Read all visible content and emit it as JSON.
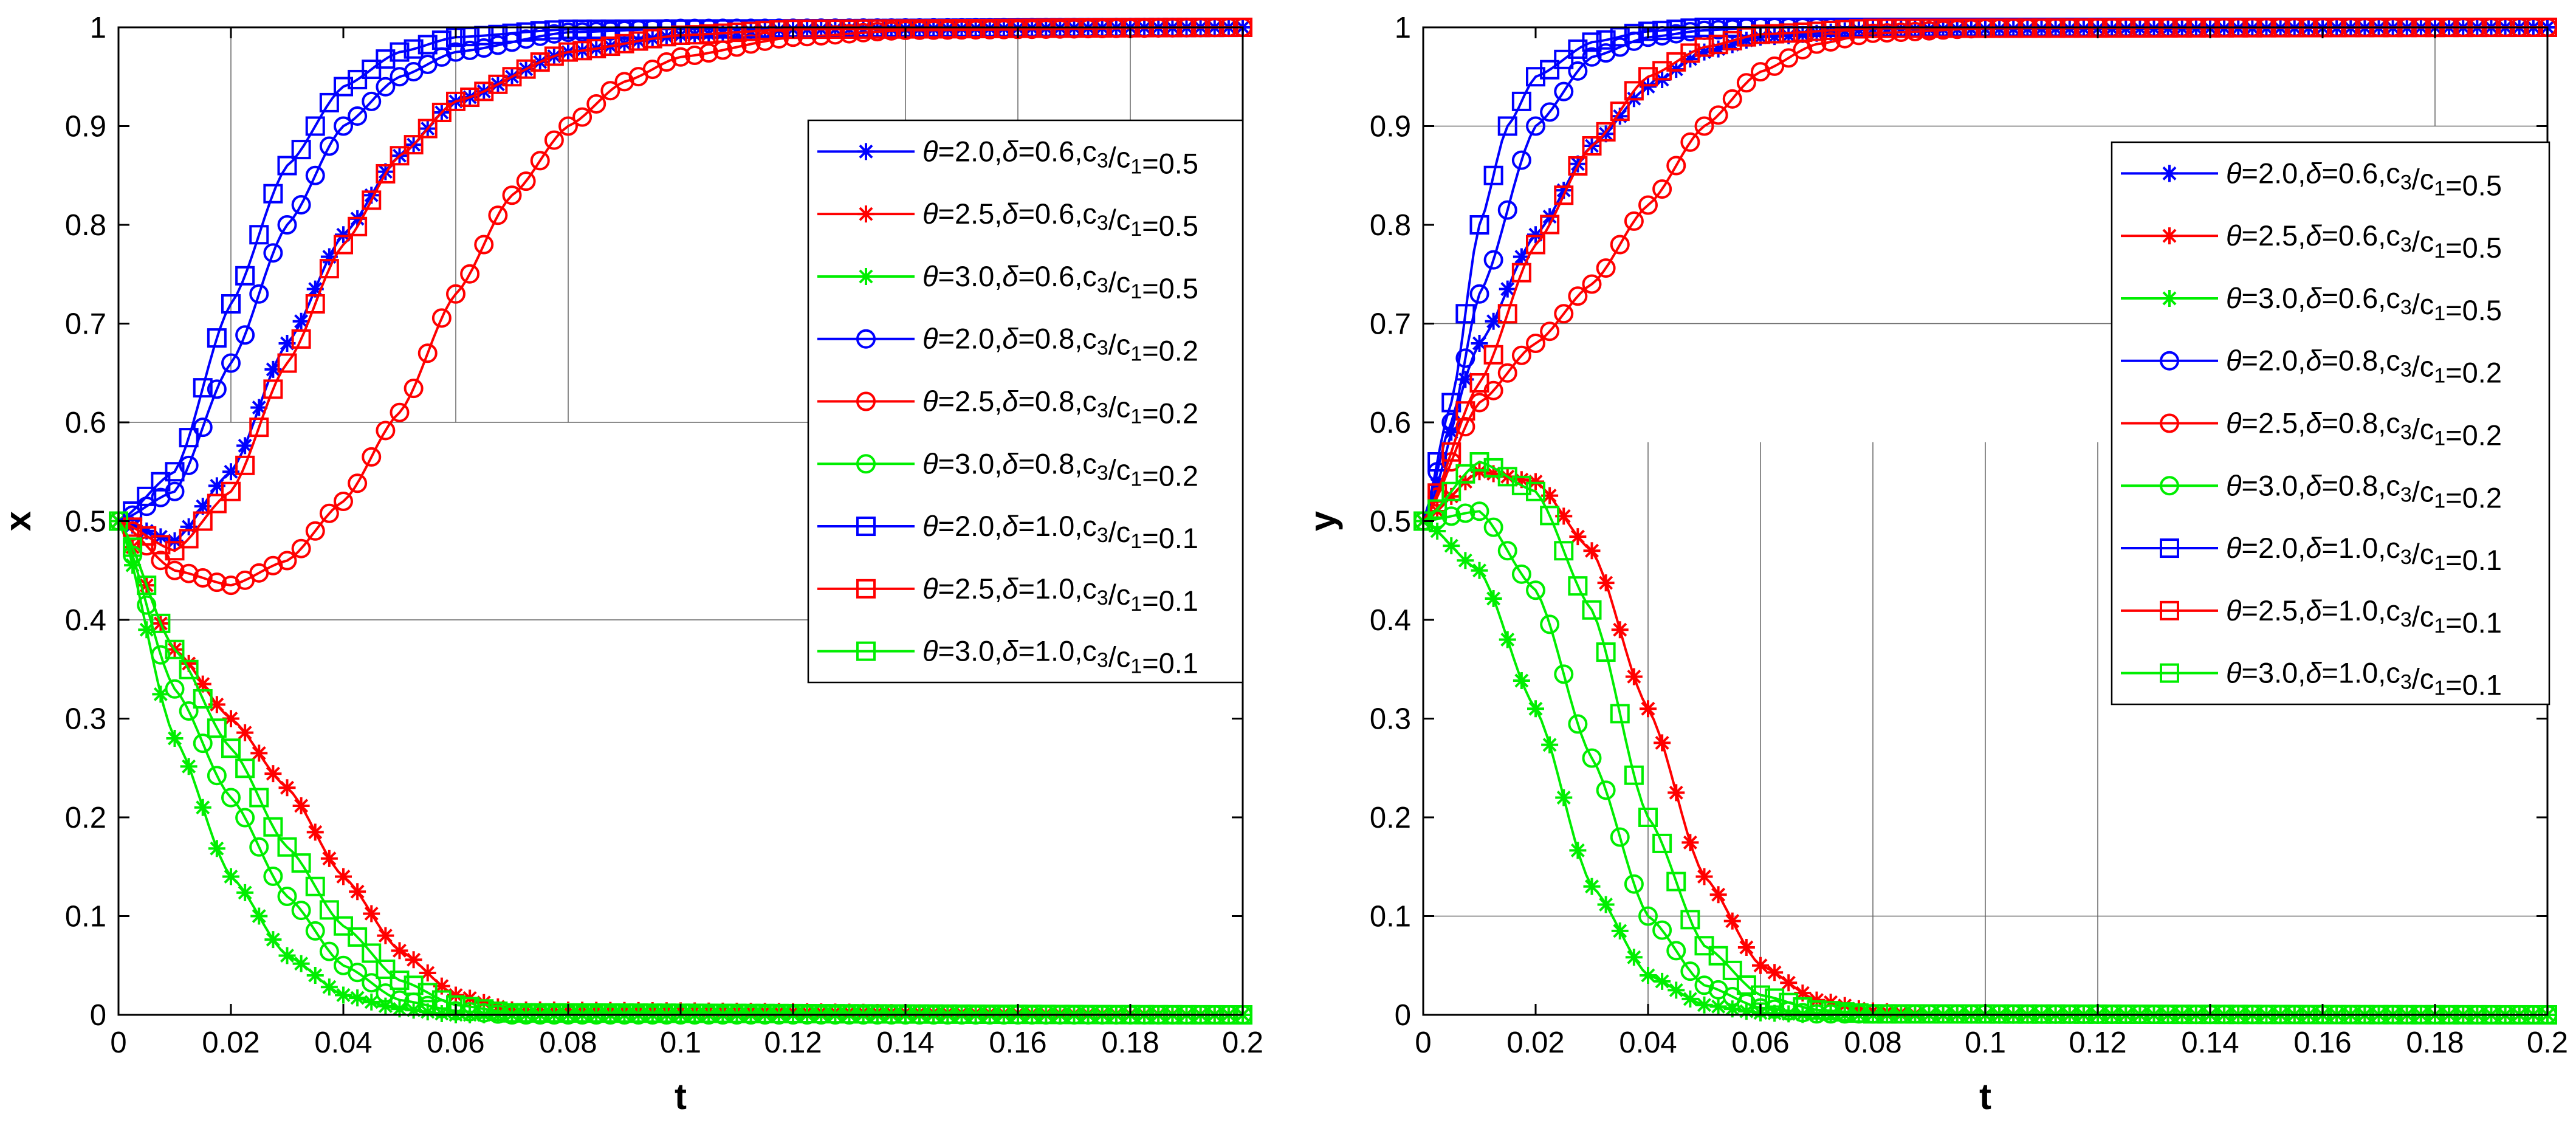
{
  "chart_data": [
    {
      "type": "line",
      "xlabel": "t",
      "ylabel": "x",
      "xlim": [
        0,
        0.2
      ],
      "ylim": [
        0,
        1
      ],
      "xticks": [
        0,
        0.02,
        0.04,
        0.06,
        0.08,
        0.1,
        0.12,
        0.14,
        0.16,
        0.18,
        0.2
      ],
      "xtick_labels": [
        "0",
        "0.02",
        "0.04",
        "0.06",
        "0.08",
        "0.1",
        "0.12",
        "0.14",
        "0.16",
        "0.18",
        "0.2"
      ],
      "yticks": [
        0,
        0.1,
        0.2,
        0.3,
        0.4,
        0.5,
        0.6,
        0.7,
        0.8,
        0.9,
        1
      ],
      "ytick_labels": [
        "0",
        "0.1",
        "0.2",
        "0.3",
        "0.4",
        "0.5",
        "0.6",
        "0.7",
        "0.8",
        "0.9",
        "1"
      ],
      "legend_position": "top-right",
      "series": [
        {
          "name": "θ=2.0,δ=0.6,c3/c1=0.5",
          "label": {
            "theta": "2.0",
            "delta": "0.6",
            "ratio": "0.5"
          },
          "color": "#0000ff",
          "marker": "asterisk",
          "x": [
            0,
            0.01,
            0.02,
            0.03,
            0.04,
            0.05,
            0.06,
            0.08,
            0.1,
            0.12,
            0.2
          ],
          "y": [
            0.5,
            0.48,
            0.55,
            0.68,
            0.79,
            0.87,
            0.925,
            0.975,
            0.992,
            0.998,
            1.0
          ]
        },
        {
          "name": "θ=2.5,δ=0.6,c3/c1=0.5",
          "label": {
            "theta": "2.5",
            "delta": "0.6",
            "ratio": "0.5"
          },
          "color": "#ff0000",
          "marker": "asterisk",
          "x": [
            0,
            0.01,
            0.02,
            0.03,
            0.04,
            0.05,
            0.06,
            0.07,
            0.2
          ],
          "y": [
            0.5,
            0.37,
            0.3,
            0.23,
            0.14,
            0.065,
            0.02,
            0.005,
            0.0
          ]
        },
        {
          "name": "θ=3.0,δ=0.6,c3/c1=0.5",
          "label": {
            "theta": "3.0",
            "delta": "0.6",
            "ratio": "0.5"
          },
          "color": "#00ee00",
          "marker": "asterisk",
          "x": [
            0,
            0.01,
            0.02,
            0.03,
            0.04,
            0.05,
            0.06,
            0.2
          ],
          "y": [
            0.5,
            0.28,
            0.14,
            0.06,
            0.02,
            0.006,
            0.0,
            0.0
          ]
        },
        {
          "name": "θ=2.0,δ=0.8,c3/c1=0.2",
          "label": {
            "theta": "2.0",
            "delta": "0.8",
            "ratio": "0.2"
          },
          "color": "#0000ff",
          "marker": "circle",
          "x": [
            0,
            0.01,
            0.02,
            0.03,
            0.04,
            0.05,
            0.06,
            0.08,
            0.1,
            0.2
          ],
          "y": [
            0.5,
            0.53,
            0.66,
            0.8,
            0.9,
            0.95,
            0.975,
            0.995,
            0.999,
            1.0
          ]
        },
        {
          "name": "θ=2.5,δ=0.8,c3/c1=0.2",
          "label": {
            "theta": "2.5",
            "delta": "0.8",
            "ratio": "0.2"
          },
          "color": "#ff0000",
          "marker": "circle",
          "x": [
            0,
            0.01,
            0.02,
            0.03,
            0.04,
            0.05,
            0.06,
            0.07,
            0.08,
            0.09,
            0.1,
            0.12,
            0.14,
            0.2
          ],
          "y": [
            0.5,
            0.45,
            0.435,
            0.46,
            0.52,
            0.61,
            0.73,
            0.83,
            0.9,
            0.945,
            0.97,
            0.99,
            0.997,
            1.0
          ]
        },
        {
          "name": "θ=3.0,δ=0.8,c3/c1=0.2",
          "label": {
            "theta": "3.0",
            "delta": "0.8",
            "ratio": "0.2"
          },
          "color": "#00ee00",
          "marker": "circle",
          "x": [
            0,
            0.01,
            0.02,
            0.03,
            0.04,
            0.05,
            0.06,
            0.07,
            0.2
          ],
          "y": [
            0.5,
            0.33,
            0.22,
            0.12,
            0.05,
            0.015,
            0.004,
            0.0,
            0.0
          ]
        },
        {
          "name": "θ=2.0,δ=1.0,c3/c1=0.1",
          "label": {
            "theta": "2.0",
            "delta": "1.0",
            "ratio": "0.1"
          },
          "color": "#0000ff",
          "marker": "square",
          "x": [
            0,
            0.01,
            0.02,
            0.03,
            0.04,
            0.05,
            0.06,
            0.08,
            0.2
          ],
          "y": [
            0.5,
            0.55,
            0.72,
            0.86,
            0.94,
            0.975,
            0.99,
            0.998,
            1.0
          ]
        },
        {
          "name": "θ=2.5,δ=1.0,c3/c1=0.1",
          "label": {
            "theta": "2.5",
            "delta": "1.0",
            "ratio": "0.1"
          },
          "color": "#ff0000",
          "marker": "square",
          "x": [
            0,
            0.01,
            0.02,
            0.03,
            0.04,
            0.05,
            0.06,
            0.08,
            0.1,
            0.12,
            0.2
          ],
          "y": [
            0.5,
            0.47,
            0.53,
            0.66,
            0.78,
            0.87,
            0.925,
            0.975,
            0.992,
            0.998,
            1.0
          ]
        },
        {
          "name": "θ=3.0,δ=1.0,c3/c1=0.1",
          "label": {
            "theta": "3.0",
            "delta": "1.0",
            "ratio": "0.1"
          },
          "color": "#00ee00",
          "marker": "square",
          "x": [
            0,
            0.01,
            0.02,
            0.03,
            0.04,
            0.05,
            0.06,
            0.07,
            0.2
          ],
          "y": [
            0.5,
            0.37,
            0.27,
            0.17,
            0.09,
            0.035,
            0.01,
            0.002,
            0.0
          ]
        }
      ]
    },
    {
      "type": "line",
      "xlabel": "t",
      "ylabel": "y",
      "xlim": [
        0,
        0.2
      ],
      "ylim": [
        0,
        1
      ],
      "xticks": [
        0,
        0.02,
        0.04,
        0.06,
        0.08,
        0.1,
        0.12,
        0.14,
        0.16,
        0.18,
        0.2
      ],
      "xtick_labels": [
        "0",
        "0.02",
        "0.04",
        "0.06",
        "0.08",
        "0.1",
        "0.12",
        "0.14",
        "0.16",
        "0.18",
        "0.2"
      ],
      "yticks": [
        0,
        0.1,
        0.2,
        0.3,
        0.4,
        0.5,
        0.6,
        0.7,
        0.8,
        0.9,
        1
      ],
      "ytick_labels": [
        "0",
        "0.1",
        "0.2",
        "0.3",
        "0.4",
        "0.5",
        "0.6",
        "0.7",
        "0.8",
        "0.9",
        "1"
      ],
      "legend_position": "top-right",
      "series": [
        {
          "name": "θ=2.0,δ=0.6,c3/c1=0.5",
          "label": {
            "theta": "2.0",
            "delta": "0.6",
            "ratio": "0.5"
          },
          "color": "#0000ff",
          "marker": "asterisk",
          "x": [
            0,
            0.01,
            0.02,
            0.03,
            0.04,
            0.05,
            0.06,
            0.08,
            0.2
          ],
          "y": [
            0.5,
            0.68,
            0.79,
            0.88,
            0.94,
            0.975,
            0.99,
            0.998,
            1.0
          ]
        },
        {
          "name": "θ=2.5,δ=0.6,c3/c1=0.5",
          "label": {
            "theta": "2.5",
            "delta": "0.6",
            "ratio": "0.5"
          },
          "color": "#ff0000",
          "marker": "asterisk",
          "x": [
            0,
            0.01,
            0.02,
            0.03,
            0.04,
            0.05,
            0.06,
            0.07,
            0.08,
            0.09,
            0.2
          ],
          "y": [
            0.5,
            0.55,
            0.54,
            0.47,
            0.31,
            0.14,
            0.05,
            0.015,
            0.004,
            0.0,
            0.0
          ]
        },
        {
          "name": "θ=3.0,δ=0.6,c3/c1=0.5",
          "label": {
            "theta": "3.0",
            "delta": "0.6",
            "ratio": "0.5"
          },
          "color": "#00ee00",
          "marker": "asterisk",
          "x": [
            0,
            0.01,
            0.02,
            0.03,
            0.04,
            0.05,
            0.06,
            0.07,
            0.2
          ],
          "y": [
            0.5,
            0.45,
            0.31,
            0.13,
            0.04,
            0.01,
            0.002,
            0.0,
            0.0
          ]
        },
        {
          "name": "θ=2.0,δ=0.8,c3/c1=0.2",
          "label": {
            "theta": "2.0",
            "delta": "0.8",
            "ratio": "0.2"
          },
          "color": "#0000ff",
          "marker": "circle",
          "x": [
            0,
            0.005,
            0.01,
            0.02,
            0.03,
            0.04,
            0.05,
            0.06,
            0.2
          ],
          "y": [
            0.5,
            0.6,
            0.73,
            0.9,
            0.97,
            0.99,
            0.997,
            1.0,
            1.0
          ]
        },
        {
          "name": "θ=2.5,δ=0.8,c3/c1=0.2",
          "label": {
            "theta": "2.5",
            "delta": "0.8",
            "ratio": "0.2"
          },
          "color": "#ff0000",
          "marker": "circle",
          "x": [
            0,
            0.01,
            0.02,
            0.03,
            0.04,
            0.05,
            0.06,
            0.07,
            0.08,
            0.1,
            0.12,
            0.2
          ],
          "y": [
            0.5,
            0.62,
            0.68,
            0.74,
            0.82,
            0.9,
            0.955,
            0.983,
            0.994,
            0.999,
            1.0,
            1.0
          ]
        },
        {
          "name": "θ=3.0,δ=0.8,c3/c1=0.2",
          "label": {
            "theta": "3.0",
            "delta": "0.8",
            "ratio": "0.2"
          },
          "color": "#00ee00",
          "marker": "circle",
          "x": [
            0,
            0.01,
            0.02,
            0.03,
            0.04,
            0.05,
            0.06,
            0.07,
            0.2
          ],
          "y": [
            0.5,
            0.51,
            0.43,
            0.26,
            0.1,
            0.03,
            0.007,
            0.001,
            0.0
          ]
        },
        {
          "name": "θ=2.0,δ=1.0,c3/c1=0.1",
          "label": {
            "theta": "2.0",
            "delta": "1.0",
            "ratio": "0.1"
          },
          "color": "#0000ff",
          "marker": "square",
          "x": [
            0,
            0.005,
            0.01,
            0.015,
            0.02,
            0.03,
            0.04,
            0.05,
            0.2
          ],
          "y": [
            0.5,
            0.62,
            0.8,
            0.9,
            0.95,
            0.985,
            0.996,
            1.0,
            1.0
          ]
        },
        {
          "name": "θ=2.5,δ=1.0,c3/c1=0.1",
          "label": {
            "theta": "2.5",
            "delta": "1.0",
            "ratio": "0.1"
          },
          "color": "#ff0000",
          "marker": "square",
          "x": [
            0,
            0.01,
            0.02,
            0.03,
            0.04,
            0.05,
            0.06,
            0.08,
            0.2
          ],
          "y": [
            0.5,
            0.64,
            0.78,
            0.88,
            0.95,
            0.98,
            0.993,
            0.999,
            1.0
          ]
        },
        {
          "name": "θ=3.0,δ=1.0,c3/c1=0.1",
          "label": {
            "theta": "3.0",
            "delta": "1.0",
            "ratio": "0.1"
          },
          "color": "#00ee00",
          "marker": "square",
          "x": [
            0,
            0.01,
            0.02,
            0.03,
            0.04,
            0.05,
            0.06,
            0.07,
            0.08,
            0.2
          ],
          "y": [
            0.5,
            0.56,
            0.53,
            0.41,
            0.2,
            0.07,
            0.02,
            0.005,
            0.001,
            0.0
          ]
        }
      ]
    }
  ]
}
